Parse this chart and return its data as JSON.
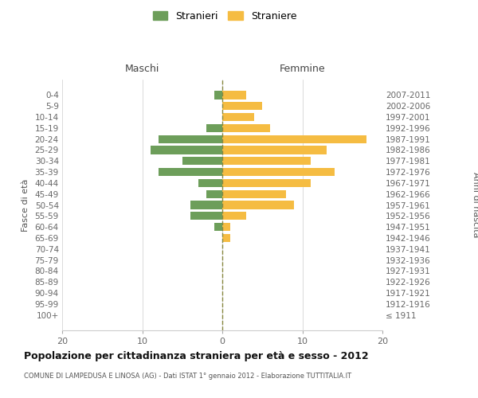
{
  "age_groups": [
    "100+",
    "95-99",
    "90-94",
    "85-89",
    "80-84",
    "75-79",
    "70-74",
    "65-69",
    "60-64",
    "55-59",
    "50-54",
    "45-49",
    "40-44",
    "35-39",
    "30-34",
    "25-29",
    "20-24",
    "15-19",
    "10-14",
    "5-9",
    "0-4"
  ],
  "birth_years": [
    "≤ 1911",
    "1912-1916",
    "1917-1921",
    "1922-1926",
    "1927-1931",
    "1932-1936",
    "1937-1941",
    "1942-1946",
    "1947-1951",
    "1952-1956",
    "1957-1961",
    "1962-1966",
    "1967-1971",
    "1972-1976",
    "1977-1981",
    "1982-1986",
    "1987-1991",
    "1992-1996",
    "1997-2001",
    "2002-2006",
    "2007-2011"
  ],
  "males": [
    0,
    0,
    0,
    0,
    0,
    0,
    0,
    0,
    1,
    4,
    4,
    2,
    3,
    8,
    5,
    9,
    8,
    2,
    0,
    0,
    1
  ],
  "females": [
    0,
    0,
    0,
    0,
    0,
    0,
    0,
    1,
    1,
    3,
    9,
    8,
    11,
    14,
    11,
    13,
    18,
    6,
    4,
    5,
    3
  ],
  "male_color": "#6d9e5a",
  "female_color": "#f5bc42",
  "dashed_line_color": "#888840",
  "grid_color": "#cccccc",
  "title": "Popolazione per cittadinanza straniera per età e sesso - 2012",
  "subtitle": "COMUNE DI LAMPEDUSA E LINOSA (AG) - Dati ISTAT 1° gennaio 2012 - Elaborazione TUTTITALIA.IT",
  "xlabel_left": "Maschi",
  "xlabel_right": "Femmine",
  "ylabel_left": "Fasce di età",
  "ylabel_right": "Anni di nascita",
  "legend_male": "Stranieri",
  "legend_female": "Straniere",
  "xlim": 20,
  "bar_height": 0.75
}
